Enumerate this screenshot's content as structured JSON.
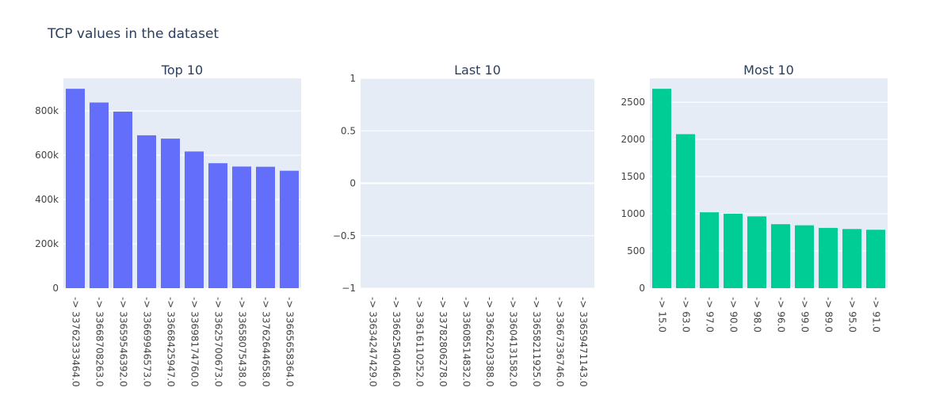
{
  "title": "TCP values in the dataset",
  "colors": {
    "plot_bg": "#e5ecf6",
    "grid": "#ffffff",
    "text": "#2a3f5f",
    "tick_text": "#444444",
    "bar_blue": "#636efa",
    "bar_green": "#00cc96"
  },
  "chart_data": [
    {
      "type": "bar",
      "title": "Top 10",
      "color": "#636efa",
      "categories": [
        "-> 3376233346​4.0",
        "-> 3366870826​3.0",
        "-> 3365954639​2.0",
        "-> 3366994657​3.0",
        "-> 3366842594​7.0",
        "-> 3369817476​0.0",
        "-> 3362570067​3.0",
        "-> 3365807543​8.0",
        "-> 3376264465​8.0",
        "-> 3366565836​4.0"
      ],
      "values": [
        900000,
        838000,
        797000,
        690000,
        675000,
        617000,
        564000,
        549000,
        548000,
        530000
      ],
      "ylim": [
        0,
        947000
      ],
      "yticks": [
        0,
        200000,
        400000,
        600000,
        800000
      ],
      "ytick_labels": [
        "0",
        "200k",
        "400k",
        "600k",
        "800k"
      ],
      "grid": true
    },
    {
      "type": "bar",
      "title": "Last 10",
      "color": "#636efa",
      "categories": [
        "-> 3363424742​9.0",
        "-> 3366254004​6.0",
        "-> 3361611025​2.0",
        "-> 3378280627​8.0",
        "-> 3360851483​2.0",
        "-> 3366220338​8.0",
        "-> 3360413158​2.0",
        "-> 3365821192​5.0",
        "-> 3366733674​6.0",
        "-> 3365947114​3.0"
      ],
      "values": [
        0,
        0,
        0,
        0,
        0,
        0,
        0,
        0,
        0,
        0
      ],
      "ylim": [
        -1,
        1
      ],
      "yticks": [
        -1,
        -0.5,
        0,
        0.5,
        1
      ],
      "ytick_labels": [
        "−1",
        "−0.5",
        "0",
        "0.5",
        "1"
      ],
      "grid": true
    },
    {
      "type": "bar",
      "title": "Most 10",
      "color": "#00cc96",
      "categories": [
        "-> 15.0",
        "-> 63.0",
        "-> 97.0",
        "-> 90.0",
        "-> 98.0",
        "-> 96.0",
        "-> 99.0",
        "-> 89.0",
        "-> 95.0",
        "-> 91.0"
      ],
      "values": [
        2680,
        2070,
        1020,
        1000,
        965,
        860,
        845,
        810,
        795,
        785
      ],
      "ylim": [
        0,
        2820
      ],
      "yticks": [
        0,
        500,
        1000,
        1500,
        2000,
        2500
      ],
      "ytick_labels": [
        "0",
        "500",
        "1000",
        "1500",
        "2000",
        "2500"
      ],
      "grid": true
    }
  ]
}
